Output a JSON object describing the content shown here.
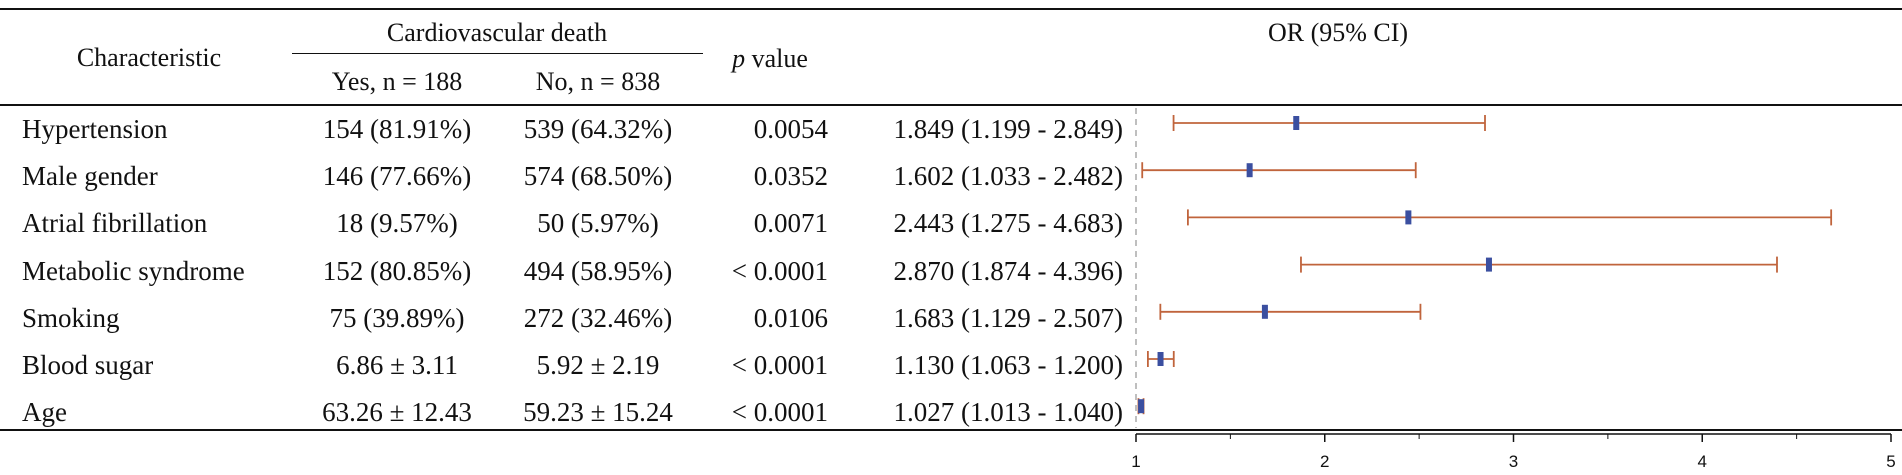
{
  "table": {
    "header": {
      "characteristic": "Characteristic",
      "group_title": "Cardiovascular death",
      "yes_col": "Yes, n = 188",
      "no_col": "No, n = 838",
      "p_value_italic": "p",
      "p_value_rest": " value",
      "or_col": "OR (95% CI)"
    },
    "rows": [
      {
        "label": "Hypertension",
        "yes": "154 (81.91%)",
        "no": "539 (64.32%)",
        "p": "0.0054",
        "or_text": "1.849 (1.199 - 2.849)"
      },
      {
        "label": "Male gender",
        "yes": "146 (77.66%)",
        "no": "574 (68.50%)",
        "p": "0.0352",
        "or_text": "1.602 (1.033 - 2.482)"
      },
      {
        "label": "Atrial fibrillation",
        "yes": "18 (9.57%)",
        "no": "50 (5.97%)",
        "p": "0.0071",
        "or_text": "2.443 (1.275 - 4.683)"
      },
      {
        "label": "Metabolic syndrome",
        "yes": "152 (80.85%)",
        "no": "494 (58.95%)",
        "p": "< 0.0001",
        "or_text": "2.870 (1.874 - 4.396)"
      },
      {
        "label": "Smoking",
        "yes": "75 (39.89%)",
        "no": "272 (32.46%)",
        "p": "0.0106",
        "or_text": "1.683 (1.129 - 2.507)"
      },
      {
        "label": "Blood sugar",
        "yes": "6.86 ± 3.11",
        "no": "5.92 ± 2.19",
        "p": "< 0.0001",
        "or_text": "1.130 (1.063 - 1.200)"
      },
      {
        "label": "Age",
        "yes": "63.26 ± 12.43",
        "no": "59.23 ± 15.24",
        "p": "< 0.0001",
        "or_text": "1.027 (1.013 - 1.040)"
      }
    ]
  },
  "chart_data": {
    "type": "forest",
    "categories": [
      "Hypertension",
      "Male gender",
      "Atrial fibrillation",
      "Metabolic syndrome",
      "Smoking",
      "Blood sugar",
      "Age"
    ],
    "or": [
      1.849,
      1.602,
      2.443,
      2.87,
      1.683,
      1.13,
      1.027
    ],
    "ci_low": [
      1.199,
      1.033,
      1.275,
      1.874,
      1.129,
      1.063,
      1.013
    ],
    "ci_high": [
      2.849,
      2.482,
      4.683,
      4.396,
      2.507,
      1.2,
      1.04
    ],
    "xlim": [
      1,
      5
    ],
    "x_ticks": [
      1,
      2,
      3,
      4,
      5
    ],
    "reference_line": 1,
    "colors": {
      "ci_line": "#c0643c",
      "point": "#3b4fa0",
      "reference": "#aaaaaa",
      "axis": "#111111"
    }
  }
}
